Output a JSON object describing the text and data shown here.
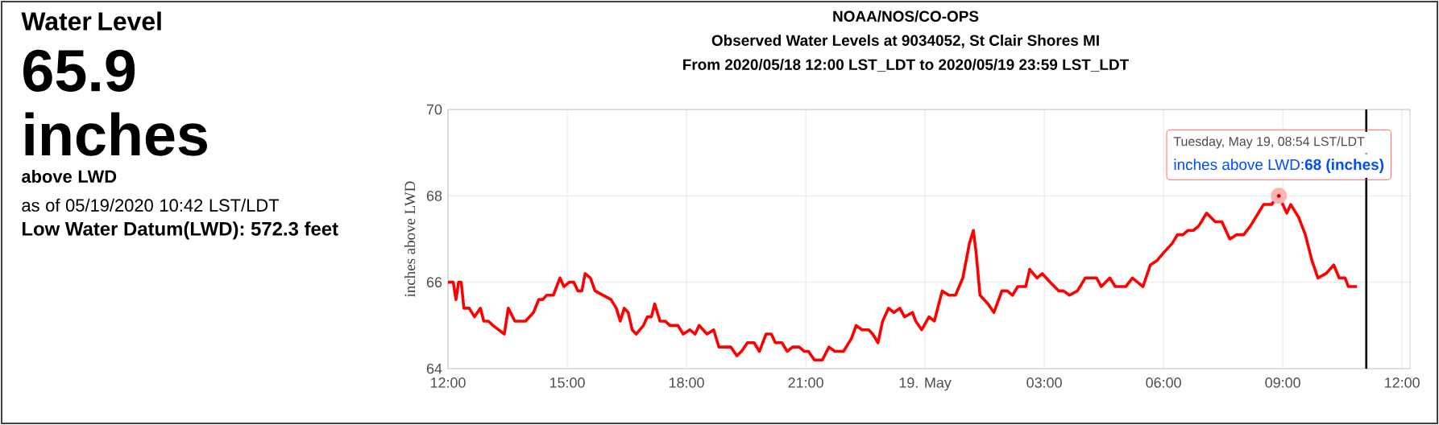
{
  "chart_data": {
    "type": "line",
    "title": "NOAA/NOS/CO-OPS",
    "subtitle": "Observed Water Levels at 9034052, St Clair Shores MI",
    "ylabel": "inches above LWD",
    "annotations": [
      "From 2020/05/18 12:00 LST_LDT to 2020/05/19 23:59 LST_LDT",
      "Water Level",
      "65.9",
      "inches",
      "above LWD",
      "as of 05/19/2020 10:42 LST/LDT",
      "Low Water Datum(LWD): 572.3 feet",
      "Tuesday, May 19, 08:54 LST/LDT",
      {
        "text": "inches above LWD:**68 (inches)**",
        "x": "2020-05-19T08:54",
        "y": 68
      }
    ],
    "xlim": [
      "2020-05-18T12:00",
      "2020-05-19T12:12"
    ],
    "ylim": [
      64,
      70
    ],
    "xticks": [
      {
        "value": "2020-05-18T12:00",
        "label": "12:00"
      },
      {
        "value": "2020-05-18T15:00",
        "label": "15:00"
      },
      {
        "value": "2020-05-18T18:00",
        "label": "18:00"
      },
      {
        "value": "2020-05-18T21:00",
        "label": "21:00"
      },
      {
        "value": "2020-05-19T00:00",
        "label": "19. May"
      },
      {
        "value": "2020-05-19T03:00",
        "label": "03:00"
      },
      {
        "value": "2020-05-19T06:00",
        "label": "06:00"
      },
      {
        "value": "2020-05-19T09:00",
        "label": "09:00"
      },
      {
        "value": "2020-05-19T12:00",
        "label": "12:00"
      }
    ],
    "yticks": [
      64,
      66,
      68,
      70
    ],
    "grid": true,
    "line_style": "solid",
    "ref_lines": [
      {
        "axis": "x",
        "value": "2020-05-19T11:06",
        "color": "#000000"
      }
    ],
    "series": [
      {
        "color": "#ff0000",
        "x": [
          "2020-05-18T12:00",
          "2020-05-18T12:08",
          "2020-05-18T12:12",
          "2020-05-18T12:16",
          "2020-05-18T12:20",
          "2020-05-18T12:24",
          "2020-05-18T12:32",
          "2020-05-18T12:40",
          "2020-05-18T12:49",
          "2020-05-18T12:54",
          "2020-05-18T13:01",
          "2020-05-18T13:08",
          "2020-05-18T13:25",
          "2020-05-18T13:31",
          "2020-05-18T13:41",
          "2020-05-18T13:49",
          "2020-05-18T13:57",
          "2020-05-18T14:09",
          "2020-05-18T14:17",
          "2020-05-18T14:23",
          "2020-05-18T14:29",
          "2020-05-18T14:39",
          "2020-05-18T14:49",
          "2020-05-18T14:55",
          "2020-05-18T15:03",
          "2020-05-18T15:10",
          "2020-05-18T15:16",
          "2020-05-18T15:22",
          "2020-05-18T15:27",
          "2020-05-18T15:35",
          "2020-05-18T15:42",
          "2020-05-18T15:54",
          "2020-05-18T16:06",
          "2020-05-18T16:14",
          "2020-05-18T16:20",
          "2020-05-18T16:26",
          "2020-05-18T16:32",
          "2020-05-18T16:38",
          "2020-05-18T16:44",
          "2020-05-18T16:55",
          "2020-05-18T17:01",
          "2020-05-18T17:07",
          "2020-05-18T17:12",
          "2020-05-18T17:20",
          "2020-05-18T17:28",
          "2020-05-18T17:35",
          "2020-05-18T17:47",
          "2020-05-18T17:55",
          "2020-05-18T18:05",
          "2020-05-18T18:13",
          "2020-05-18T18:19",
          "2020-05-18T18:31",
          "2020-05-18T18:41",
          "2020-05-18T18:49",
          "2020-05-18T18:57",
          "2020-05-18T19:07",
          "2020-05-18T19:16",
          "2020-05-18T19:23",
          "2020-05-18T19:32",
          "2020-05-18T19:42",
          "2020-05-18T19:50",
          "2020-05-18T20:00",
          "2020-05-18T20:08",
          "2020-05-18T20:14",
          "2020-05-18T20:24",
          "2020-05-18T20:32",
          "2020-05-18T20:40",
          "2020-05-18T20:50",
          "2020-05-18T20:58",
          "2020-05-18T21:04",
          "2020-05-18T21:13",
          "2020-05-18T21:25",
          "2020-05-18T21:35",
          "2020-05-18T21:44",
          "2020-05-18T21:57",
          "2020-05-18T22:09",
          "2020-05-18T22:16",
          "2020-05-18T22:25",
          "2020-05-18T22:35",
          "2020-05-18T22:41",
          "2020-05-18T22:49",
          "2020-05-18T22:56",
          "2020-05-18T23:05",
          "2020-05-18T23:13",
          "2020-05-18T23:22",
          "2020-05-18T23:29",
          "2020-05-18T23:41",
          "2020-05-18T23:46",
          "2020-05-18T23:55",
          "2020-05-19T00:06",
          "2020-05-19T00:14",
          "2020-05-19T00:26",
          "2020-05-19T00:36",
          "2020-05-19T00:46",
          "2020-05-19T00:57",
          "2020-05-19T01:07",
          "2020-05-19T01:13",
          "2020-05-19T01:17",
          "2020-05-19T01:23",
          "2020-05-19T01:35",
          "2020-05-19T01:44",
          "2020-05-19T01:56",
          "2020-05-19T02:04",
          "2020-05-19T02:12",
          "2020-05-19T02:20",
          "2020-05-19T02:32",
          "2020-05-19T02:38",
          "2020-05-19T02:49",
          "2020-05-19T02:57",
          "2020-05-19T03:09",
          "2020-05-19T03:22",
          "2020-05-19T03:29",
          "2020-05-19T03:38",
          "2020-05-19T03:50",
          "2020-05-19T04:02",
          "2020-05-19T04:19",
          "2020-05-19T04:26",
          "2020-05-19T04:39",
          "2020-05-19T04:47",
          "2020-05-19T04:57",
          "2020-05-19T05:03",
          "2020-05-19T05:13",
          "2020-05-19T05:21",
          "2020-05-19T05:29",
          "2020-05-19T05:40",
          "2020-05-19T05:50",
          "2020-05-19T06:01",
          "2020-05-19T06:13",
          "2020-05-19T06:21",
          "2020-05-19T06:29",
          "2020-05-19T06:37",
          "2020-05-19T06:45",
          "2020-05-19T06:53",
          "2020-05-19T07:05",
          "2020-05-19T07:18",
          "2020-05-19T07:28",
          "2020-05-19T07:40",
          "2020-05-19T07:50",
          "2020-05-19T08:01",
          "2020-05-19T08:11",
          "2020-05-19T08:23",
          "2020-05-19T08:31",
          "2020-05-19T08:43",
          "2020-05-19T08:48",
          "2020-05-19T08:54",
          "2020-05-19T09:06",
          "2020-05-19T09:12",
          "2020-05-19T09:24",
          "2020-05-19T09:34",
          "2020-05-19T09:44",
          "2020-05-19T09:53",
          "2020-05-19T10:05",
          "2020-05-19T10:17",
          "2020-05-19T10:25",
          "2020-05-19T10:34",
          "2020-05-19T10:39",
          "2020-05-19T10:46",
          "2020-05-19T10:52"
        ],
        "values": [
          66.0,
          66.0,
          65.6,
          66.0,
          66.0,
          65.4,
          65.4,
          65.2,
          65.4,
          65.1,
          65.1,
          65.0,
          64.8,
          65.4,
          65.1,
          65.1,
          65.1,
          65.3,
          65.6,
          65.6,
          65.7,
          65.7,
          66.1,
          65.9,
          66.0,
          66.0,
          65.8,
          65.8,
          66.2,
          66.1,
          65.8,
          65.7,
          65.6,
          65.4,
          65.1,
          65.4,
          65.3,
          64.9,
          64.8,
          65.0,
          65.2,
          65.2,
          65.5,
          65.1,
          65.1,
          65.0,
          65.0,
          64.8,
          64.9,
          64.8,
          65.0,
          64.8,
          64.9,
          64.5,
          64.5,
          64.5,
          64.3,
          64.4,
          64.6,
          64.6,
          64.4,
          64.8,
          64.8,
          64.6,
          64.6,
          64.4,
          64.5,
          64.5,
          64.4,
          64.4,
          64.2,
          64.2,
          64.5,
          64.4,
          64.4,
          64.7,
          65.0,
          64.9,
          64.9,
          64.8,
          64.6,
          65.1,
          65.4,
          65.3,
          65.4,
          65.2,
          65.3,
          65.1,
          64.9,
          65.2,
          65.1,
          65.8,
          65.7,
          65.7,
          66.1,
          66.9,
          67.2,
          66.7,
          65.7,
          65.5,
          65.3,
          65.8,
          65.8,
          65.7,
          65.9,
          65.9,
          66.3,
          66.1,
          66.2,
          66.0,
          65.8,
          65.8,
          65.7,
          65.8,
          66.1,
          66.1,
          65.9,
          66.1,
          65.9,
          65.9,
          65.9,
          66.1,
          66.0,
          65.9,
          66.4,
          66.5,
          66.7,
          66.9,
          67.1,
          67.1,
          67.2,
          67.2,
          67.3,
          67.6,
          67.4,
          67.4,
          67.0,
          67.1,
          67.1,
          67.3,
          67.6,
          67.8,
          67.8,
          67.9,
          68.0,
          67.6,
          67.8,
          67.5,
          67.1,
          66.5,
          66.1,
          66.2,
          66.4,
          66.1,
          66.1,
          65.9,
          65.9,
          65.9
        ]
      }
    ]
  }
}
